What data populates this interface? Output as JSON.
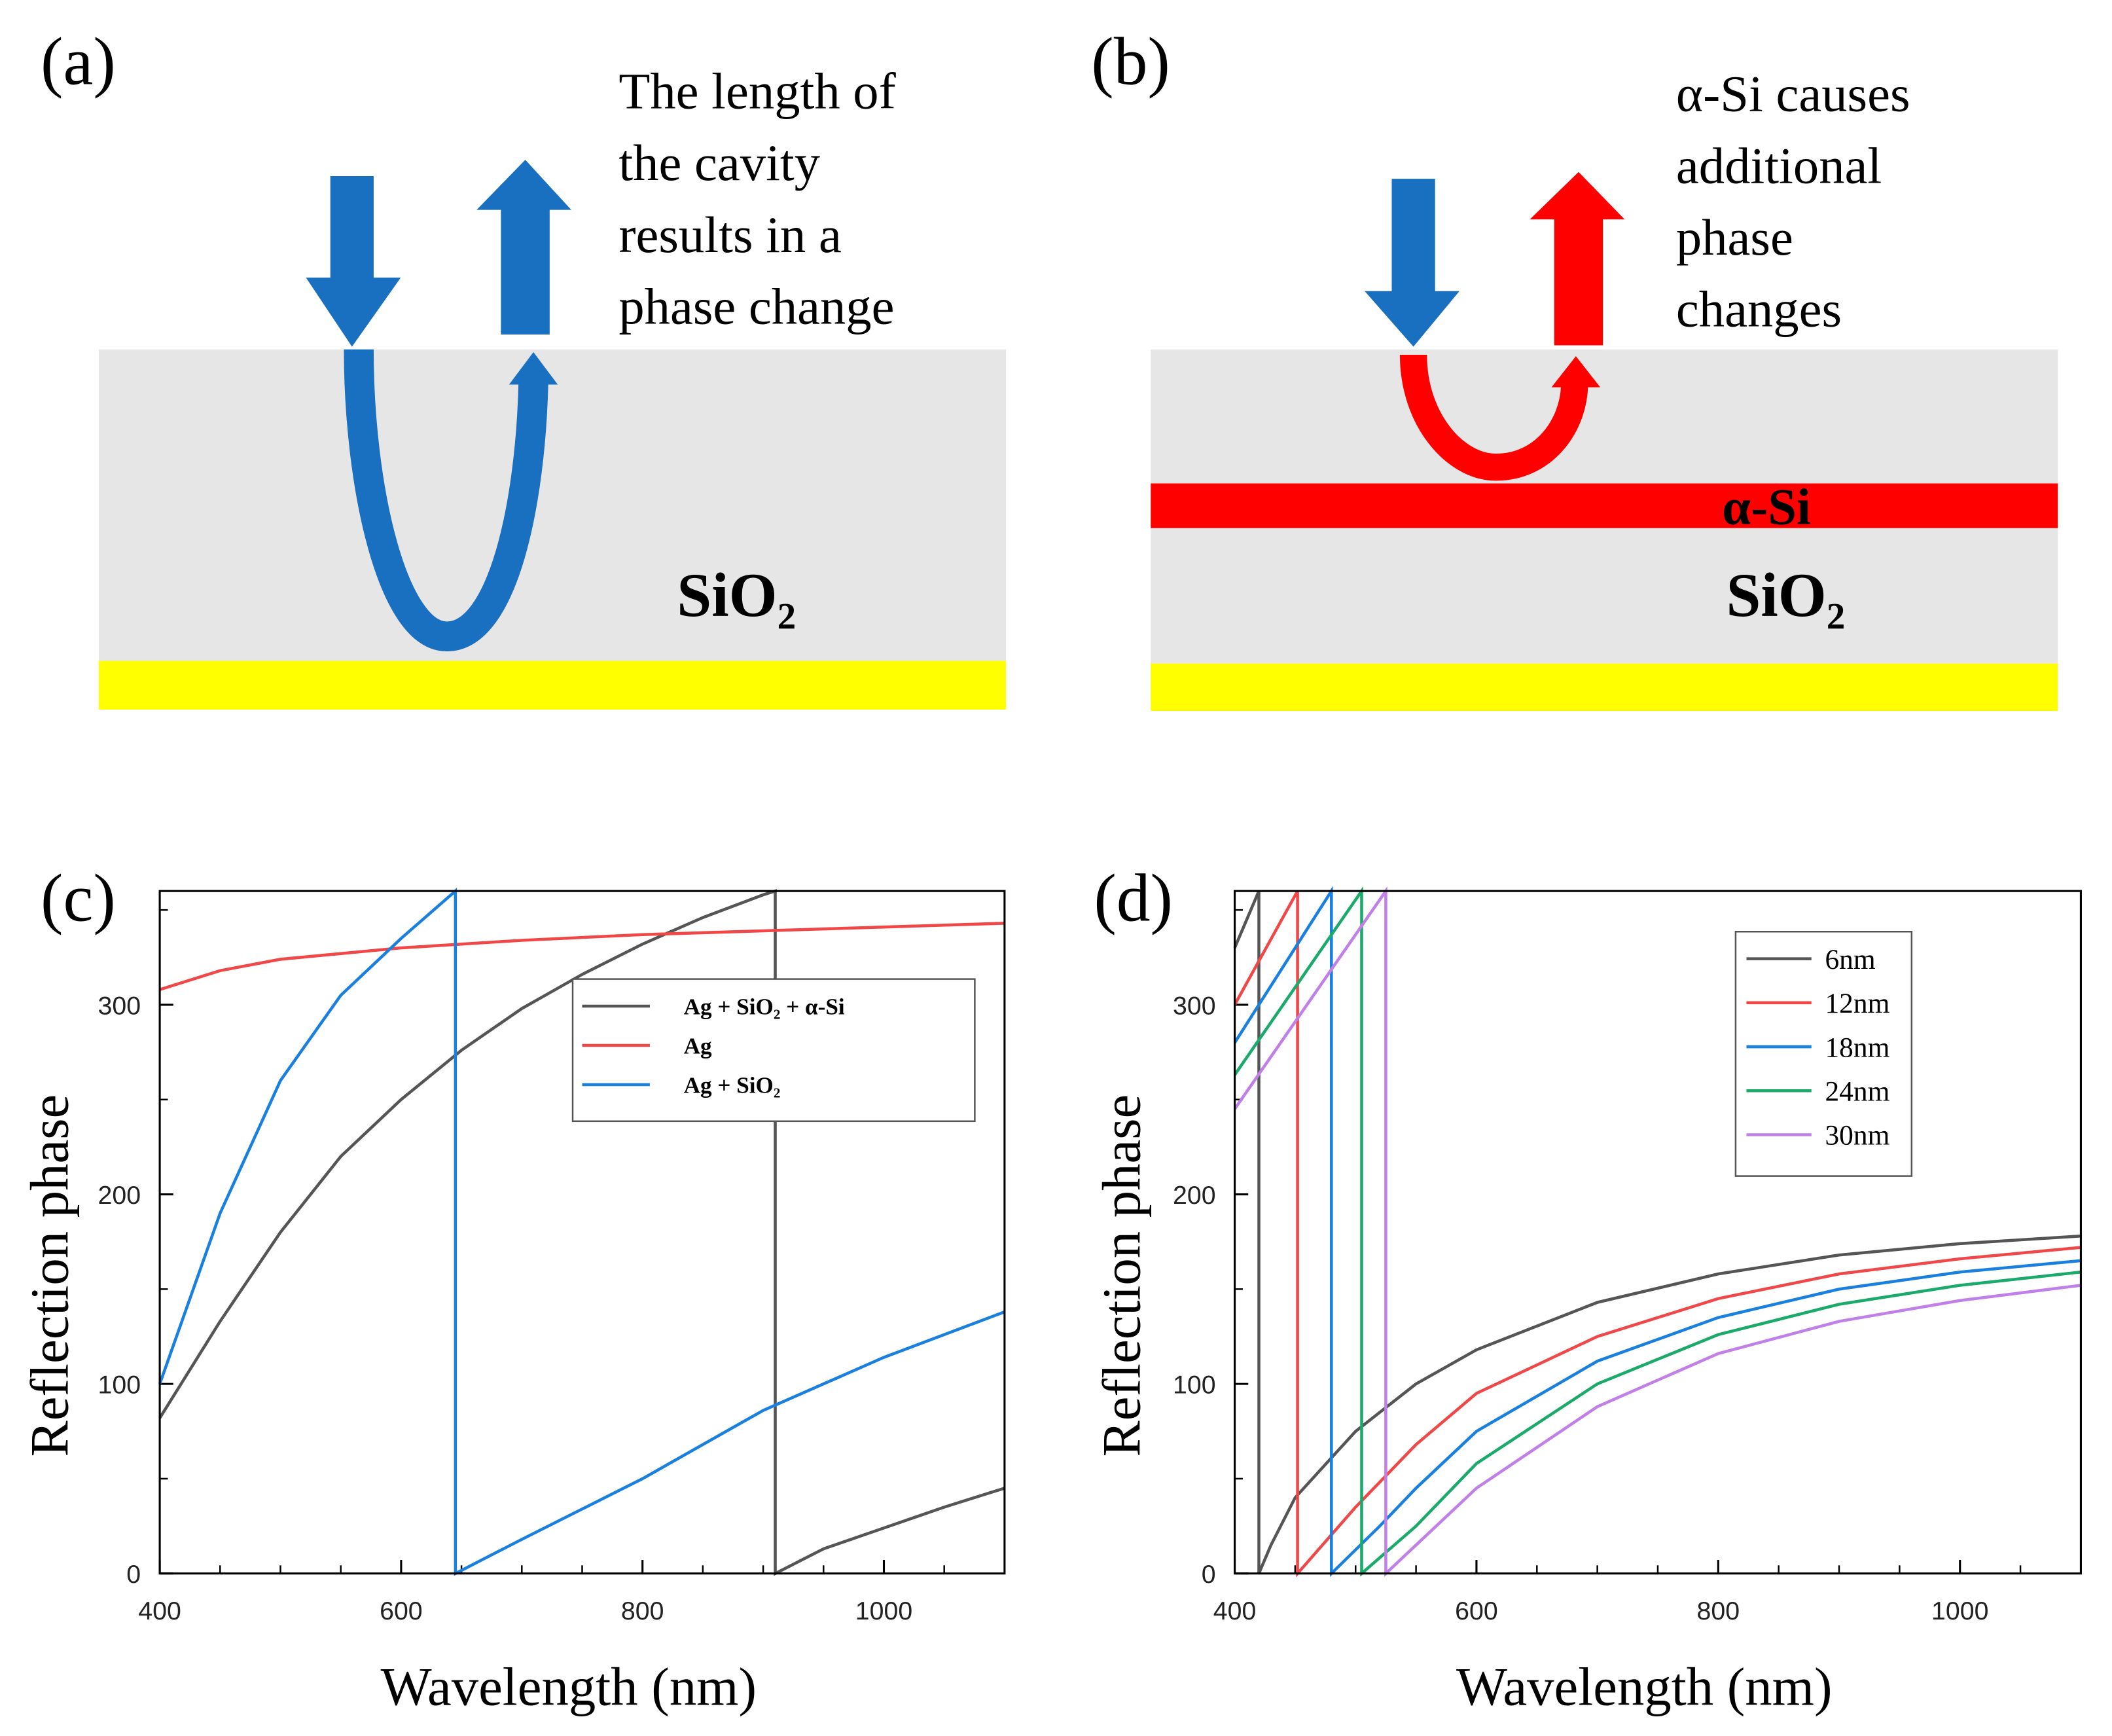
{
  "diagrams": [
    {
      "label": "(a)",
      "caption": [
        "The length of",
        "the cavity",
        "results in a",
        "phase change"
      ],
      "material": "SiO₂"
    },
    {
      "label": "(b)",
      "caption": [
        "α-Si causes",
        "additional",
        "phase",
        "changes"
      ],
      "layer": "α-Si",
      "material": "SiO₂"
    }
  ],
  "chart_data": [
    {
      "type": "line",
      "label": "(c)",
      "xlabel": "Wavelength (nm)",
      "ylabel": "Reflection phase",
      "xlim": [
        400,
        1100
      ],
      "ylim": [
        0,
        360
      ],
      "xticks": [
        400,
        600,
        800,
        1000
      ],
      "yticks": [
        0,
        100,
        200,
        300
      ],
      "xminorticks": [
        450,
        500,
        550,
        650,
        700,
        750,
        850,
        900,
        950,
        1050
      ],
      "yminorticks": [
        50,
        150,
        250,
        350
      ],
      "legend": "upper right",
      "series": [
        {
          "name": "Ag + SiO₂ + α-Si",
          "color": "#555555",
          "x": [
            400,
            450,
            500,
            550,
            600,
            650,
            700,
            750,
            800,
            850,
            900,
            910,
            910,
            950,
            1000,
            1050,
            1100
          ],
          "values": [
            82,
            133,
            180,
            220,
            250,
            276,
            298,
            316,
            332,
            346,
            358,
            360,
            0,
            13,
            24,
            35,
            45
          ]
        },
        {
          "name": "Ag",
          "color": "#f04848",
          "x": [
            400,
            450,
            500,
            600,
            700,
            800,
            900,
            1000,
            1100
          ],
          "values": [
            308,
            318,
            324,
            330,
            334,
            337,
            339,
            341,
            343
          ]
        },
        {
          "name": "Ag + SiO₂",
          "color": "#1a80e0",
          "x": [
            400,
            450,
            500,
            550,
            600,
            645,
            645,
            700,
            800,
            900,
            1000,
            1100
          ],
          "values": [
            100,
            190,
            260,
            305,
            335,
            360,
            0,
            18,
            50,
            86,
            114,
            138
          ]
        }
      ]
    },
    {
      "type": "line",
      "label": "(d)",
      "xlabel": "Wavelength (nm)",
      "ylabel": "Reflection phase",
      "xlim": [
        400,
        1100
      ],
      "ylim": [
        0,
        360
      ],
      "xticks": [
        400,
        600,
        800,
        1000
      ],
      "yticks": [
        0,
        100,
        200,
        300
      ],
      "xminorticks": [
        450,
        500,
        550,
        650,
        700,
        750,
        850,
        900,
        950,
        1050
      ],
      "yminorticks": [
        50,
        150,
        250,
        350
      ],
      "legend": "upper right",
      "series": [
        {
          "name": "6nm",
          "color": "#555555",
          "x": [
            400,
            420,
            420,
            430,
            450,
            500,
            550,
            600,
            700,
            800,
            900,
            1000,
            1100
          ],
          "values": [
            330,
            360,
            0,
            15,
            40,
            75,
            100,
            118,
            143,
            158,
            168,
            174,
            178
          ]
        },
        {
          "name": "12nm",
          "color": "#f04848",
          "x": [
            400,
            452,
            452,
            500,
            550,
            600,
            700,
            800,
            900,
            1000,
            1100
          ],
          "values": [
            300,
            360,
            0,
            35,
            68,
            95,
            125,
            145,
            158,
            166,
            172
          ]
        },
        {
          "name": "18nm",
          "color": "#1a80e0",
          "x": [
            400,
            480,
            480,
            520,
            550,
            600,
            700,
            800,
            900,
            1000,
            1100
          ],
          "values": [
            280,
            360,
            0,
            25,
            45,
            75,
            112,
            135,
            150,
            159,
            165
          ]
        },
        {
          "name": "24nm",
          "color": "#1aaa6a",
          "x": [
            400,
            505,
            505,
            550,
            600,
            700,
            800,
            900,
            1000,
            1100
          ],
          "values": [
            263,
            360,
            0,
            25,
            58,
            100,
            126,
            142,
            152,
            159
          ]
        },
        {
          "name": "30nm",
          "color": "#c080e8",
          "x": [
            400,
            525,
            525,
            550,
            600,
            700,
            800,
            900,
            1000,
            1100
          ],
          "values": [
            245,
            360,
            0,
            15,
            45,
            88,
            116,
            133,
            144,
            152
          ]
        }
      ]
    }
  ]
}
